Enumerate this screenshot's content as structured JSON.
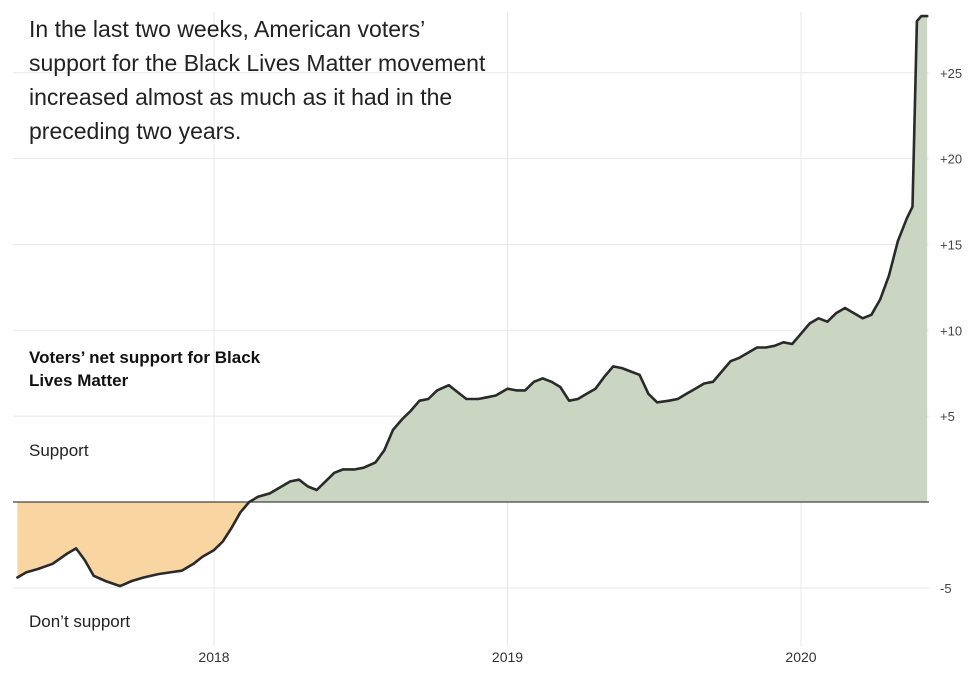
{
  "headline": "In the last two weeks, American voters’ support for the Black Lives Matter movement increased almost as much as it had in the preceding two years.",
  "series_label": "Voters’ net support for Black Lives Matter",
  "support_label": "Support",
  "dont_support_label": "Don’t support",
  "colors": {
    "positive_fill": "#cad6c2",
    "negative_fill": "#f9d6a1",
    "line": "#2a2a2a",
    "grid": "#e8e8e8",
    "zero_line": "#444444"
  },
  "chart_data": {
    "type": "area",
    "title": "",
    "xlabel": "",
    "ylabel": "Voters’ net support for Black Lives Matter",
    "xlim": [
      2017.33,
      2020.45
    ],
    "ylim": [
      -7.5,
      28.5
    ],
    "grid": true,
    "x_ticks": [
      {
        "value": 2018,
        "label": "2018"
      },
      {
        "value": 2019,
        "label": "2019"
      },
      {
        "value": 2020,
        "label": "2020"
      }
    ],
    "y_ticks": [
      {
        "value": 25,
        "label": "+25"
      },
      {
        "value": 20,
        "label": "+20"
      },
      {
        "value": 15,
        "label": "+15"
      },
      {
        "value": 10,
        "label": "+10"
      },
      {
        "value": 5,
        "label": "+5"
      },
      {
        "value": -5,
        "label": "-5"
      }
    ],
    "series": [
      {
        "points": [
          [
            2017.33,
            -4.4
          ],
          [
            2017.36,
            -4.1
          ],
          [
            2017.4,
            -3.9
          ],
          [
            2017.45,
            -3.6
          ],
          [
            2017.5,
            -3.0
          ],
          [
            2017.53,
            -2.7
          ],
          [
            2017.56,
            -3.4
          ],
          [
            2017.59,
            -4.3
          ],
          [
            2017.63,
            -4.6
          ],
          [
            2017.68,
            -4.9
          ],
          [
            2017.72,
            -4.6
          ],
          [
            2017.76,
            -4.4
          ],
          [
            2017.81,
            -4.2
          ],
          [
            2017.85,
            -4.1
          ],
          [
            2017.89,
            -4.0
          ],
          [
            2017.93,
            -3.6
          ],
          [
            2017.96,
            -3.2
          ],
          [
            2018.0,
            -2.8
          ],
          [
            2018.03,
            -2.3
          ],
          [
            2018.06,
            -1.5
          ],
          [
            2018.09,
            -0.6
          ],
          [
            2018.12,
            0.0
          ],
          [
            2018.15,
            0.3
          ],
          [
            2018.19,
            0.5
          ],
          [
            2018.22,
            0.8
          ],
          [
            2018.26,
            1.2
          ],
          [
            2018.29,
            1.3
          ],
          [
            2018.32,
            0.9
          ],
          [
            2018.35,
            0.7
          ],
          [
            2018.38,
            1.2
          ],
          [
            2018.41,
            1.7
          ],
          [
            2018.44,
            1.9
          ],
          [
            2018.48,
            1.9
          ],
          [
            2018.51,
            2.0
          ],
          [
            2018.55,
            2.3
          ],
          [
            2018.58,
            3.0
          ],
          [
            2018.61,
            4.2
          ],
          [
            2018.64,
            4.8
          ],
          [
            2018.67,
            5.3
          ],
          [
            2018.7,
            5.9
          ],
          [
            2018.73,
            6.0
          ],
          [
            2018.76,
            6.5
          ],
          [
            2018.8,
            6.8
          ],
          [
            2018.83,
            6.4
          ],
          [
            2018.86,
            6.0
          ],
          [
            2018.9,
            6.0
          ],
          [
            2018.93,
            6.1
          ],
          [
            2018.96,
            6.2
          ],
          [
            2019.0,
            6.6
          ],
          [
            2019.03,
            6.5
          ],
          [
            2019.06,
            6.5
          ],
          [
            2019.09,
            7.0
          ],
          [
            2019.12,
            7.2
          ],
          [
            2019.15,
            7.0
          ],
          [
            2019.18,
            6.7
          ],
          [
            2019.21,
            5.9
          ],
          [
            2019.24,
            6.0
          ],
          [
            2019.27,
            6.3
          ],
          [
            2019.3,
            6.6
          ],
          [
            2019.33,
            7.3
          ],
          [
            2019.36,
            7.9
          ],
          [
            2019.39,
            7.8
          ],
          [
            2019.42,
            7.6
          ],
          [
            2019.45,
            7.4
          ],
          [
            2019.48,
            6.3
          ],
          [
            2019.51,
            5.8
          ],
          [
            2019.55,
            5.9
          ],
          [
            2019.58,
            6.0
          ],
          [
            2019.61,
            6.3
          ],
          [
            2019.64,
            6.6
          ],
          [
            2019.67,
            6.9
          ],
          [
            2019.7,
            7.0
          ],
          [
            2019.73,
            7.6
          ],
          [
            2019.76,
            8.2
          ],
          [
            2019.79,
            8.4
          ],
          [
            2019.82,
            8.7
          ],
          [
            2019.85,
            9.0
          ],
          [
            2019.88,
            9.0
          ],
          [
            2019.91,
            9.1
          ],
          [
            2019.94,
            9.3
          ],
          [
            2019.97,
            9.2
          ],
          [
            2020.0,
            9.8
          ],
          [
            2020.03,
            10.4
          ],
          [
            2020.06,
            10.7
          ],
          [
            2020.09,
            10.5
          ],
          [
            2020.12,
            11.0
          ],
          [
            2020.15,
            11.3
          ],
          [
            2020.18,
            11.0
          ],
          [
            2020.21,
            10.7
          ],
          [
            2020.24,
            10.9
          ],
          [
            2020.27,
            11.8
          ],
          [
            2020.3,
            13.2
          ],
          [
            2020.33,
            15.2
          ],
          [
            2020.36,
            16.5
          ],
          [
            2020.38,
            17.2
          ],
          [
            2020.395,
            28.0
          ],
          [
            2020.41,
            28.3
          ],
          [
            2020.43,
            28.3
          ]
        ]
      }
    ]
  }
}
